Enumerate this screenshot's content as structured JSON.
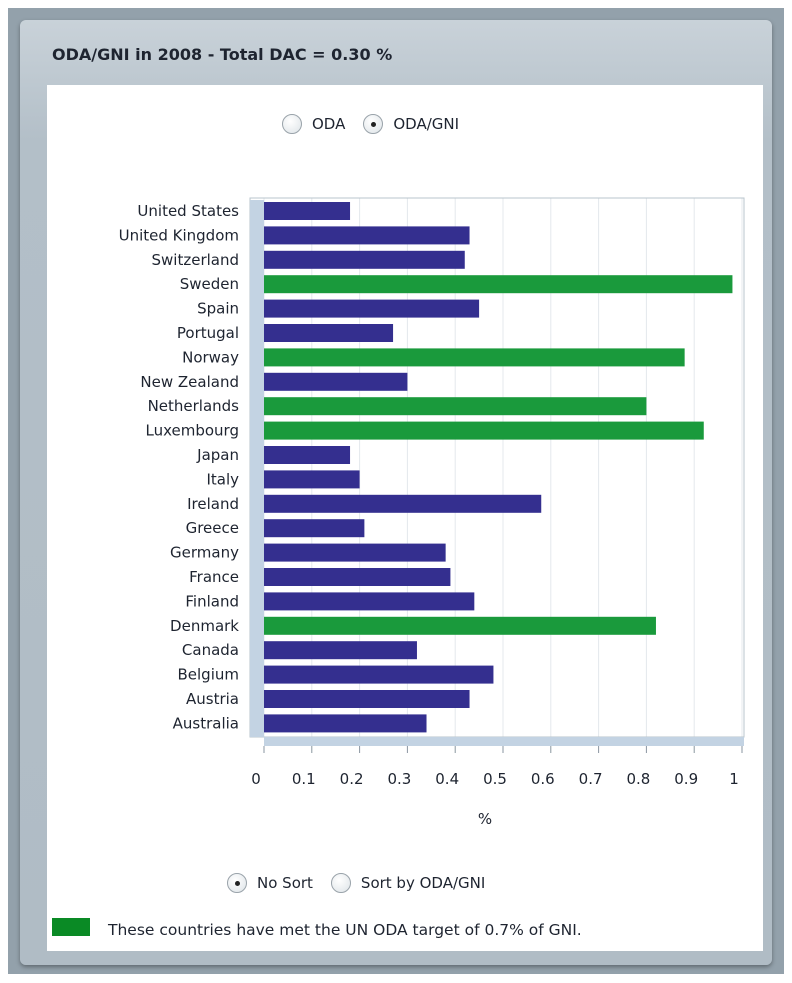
{
  "panel": {
    "title": "ODA/GNI in 2008 - Total DAC = 0.30 %"
  },
  "measure_toggle": {
    "options": [
      "ODA",
      "ODA/GNI"
    ],
    "selected": "ODA/GNI"
  },
  "sort_toggle": {
    "options": [
      "No Sort",
      "Sort by ODA/GNI"
    ],
    "selected": "No Sort"
  },
  "legend": {
    "text": "These countries have met the UN ODA target of 0.7% of GNI.",
    "color": "#0a8a25"
  },
  "colors": {
    "below_target": "#342f8f",
    "met_target": "#1a9a3c"
  },
  "chart_data": {
    "type": "bar",
    "orientation": "horizontal",
    "categories": [
      "United States",
      "United Kingdom",
      "Switzerland",
      "Sweden",
      "Spain",
      "Portugal",
      "Norway",
      "New Zealand",
      "Netherlands",
      "Luxembourg",
      "Japan",
      "Italy",
      "Ireland",
      "Greece",
      "Germany",
      "France",
      "Finland",
      "Denmark",
      "Canada",
      "Belgium",
      "Austria",
      "Australia"
    ],
    "values": [
      0.18,
      0.43,
      0.42,
      0.98,
      0.45,
      0.27,
      0.88,
      0.3,
      0.8,
      0.92,
      0.18,
      0.2,
      0.58,
      0.21,
      0.38,
      0.39,
      0.44,
      0.82,
      0.32,
      0.48,
      0.43,
      0.34
    ],
    "met_target": [
      false,
      false,
      false,
      true,
      false,
      false,
      true,
      false,
      true,
      true,
      false,
      false,
      false,
      false,
      false,
      false,
      false,
      true,
      false,
      false,
      false,
      false
    ],
    "xlabel": "%",
    "xlim": [
      0,
      1
    ],
    "xticks": [
      "0",
      "0.1",
      "0.2",
      "0.3",
      "0.4",
      "0.5",
      "0.6",
      "0.7",
      "0.8",
      "0.9",
      "1"
    ],
    "grid": true
  }
}
